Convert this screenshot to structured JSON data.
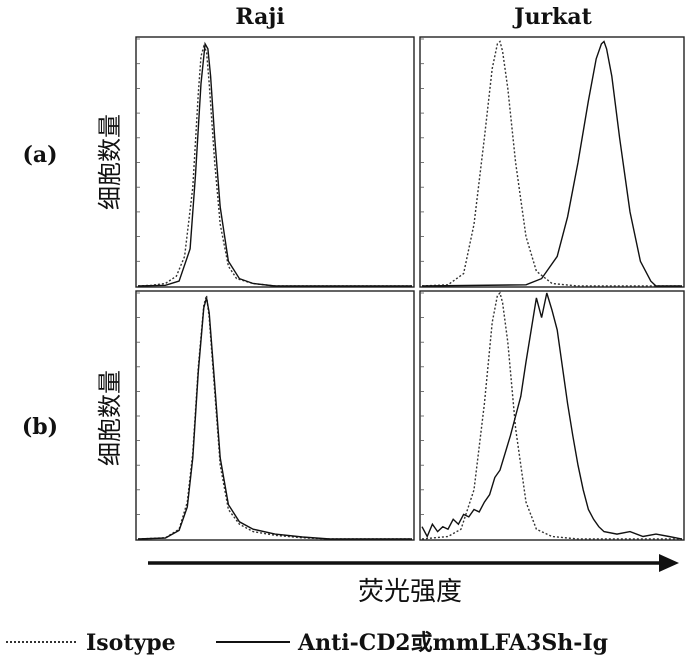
{
  "labels": {
    "col_raji": "Raji",
    "col_jurkat": "Jurkat",
    "row_a": "(a)",
    "row_b": "(b)",
    "ylabel": "细胞数量",
    "xlabel": "荧光强度",
    "legend_isotype": "Isotype",
    "legend_anti": "Anti-CD2或mmLFA3Sh-Ig"
  },
  "colors": {
    "line": "#111111",
    "frame": "#222222",
    "background": "#ffffff"
  },
  "chart_data": [
    {
      "type": "line",
      "panel": "(a) Raji",
      "xlim": [
        0,
        1
      ],
      "ylim": [
        0,
        1
      ],
      "series": [
        {
          "name": "Isotype",
          "style": "dotted",
          "x": [
            0,
            0.05,
            0.1,
            0.14,
            0.17,
            0.2,
            0.22,
            0.23,
            0.24,
            0.25,
            0.26,
            0.28,
            0.3,
            0.33,
            0.36,
            0.42,
            0.5,
            0.7,
            1.0
          ],
          "y": [
            0,
            0.003,
            0.01,
            0.04,
            0.12,
            0.4,
            0.78,
            0.93,
            0.97,
            0.95,
            0.82,
            0.5,
            0.25,
            0.08,
            0.03,
            0.01,
            0,
            0,
            0
          ]
        },
        {
          "name": "Anti-CD2或mmLFA3Sh-Ig",
          "style": "solid",
          "x": [
            0,
            0.1,
            0.15,
            0.19,
            0.21,
            0.23,
            0.245,
            0.255,
            0.265,
            0.28,
            0.3,
            0.33,
            0.37,
            0.42,
            0.5,
            0.7,
            1.0
          ],
          "y": [
            0,
            0.003,
            0.02,
            0.15,
            0.45,
            0.82,
            0.98,
            0.96,
            0.85,
            0.6,
            0.32,
            0.1,
            0.03,
            0.01,
            0,
            0,
            0
          ]
        }
      ]
    },
    {
      "type": "line",
      "panel": "(a) Jurkat",
      "xlim": [
        0,
        1
      ],
      "ylim": [
        0,
        1
      ],
      "series": [
        {
          "name": "Isotype",
          "style": "dotted",
          "x": [
            0,
            0.1,
            0.16,
            0.2,
            0.24,
            0.27,
            0.29,
            0.3,
            0.31,
            0.33,
            0.36,
            0.4,
            0.44,
            0.5,
            0.6,
            1.0
          ],
          "y": [
            0,
            0.005,
            0.05,
            0.25,
            0.6,
            0.88,
            0.98,
            0.99,
            0.95,
            0.8,
            0.5,
            0.2,
            0.06,
            0.01,
            0,
            0
          ]
        },
        {
          "name": "Anti-CD2或mmLFA3Sh-Ig",
          "style": "solid",
          "x": [
            0,
            0.4,
            0.46,
            0.52,
            0.56,
            0.6,
            0.64,
            0.67,
            0.69,
            0.7,
            0.71,
            0.73,
            0.76,
            0.8,
            0.84,
            0.88,
            0.9,
            1.0
          ],
          "y": [
            0,
            0.005,
            0.03,
            0.12,
            0.28,
            0.5,
            0.75,
            0.92,
            0.98,
            0.99,
            0.96,
            0.85,
            0.6,
            0.3,
            0.1,
            0.02,
            0,
            0
          ]
        }
      ]
    },
    {
      "type": "line",
      "panel": "(b) Raji",
      "xlim": [
        0,
        1
      ],
      "ylim": [
        0,
        1
      ],
      "series": [
        {
          "name": "Isotype",
          "style": "dotted",
          "x": [
            0,
            0.1,
            0.15,
            0.18,
            0.2,
            0.22,
            0.24,
            0.25,
            0.26,
            0.28,
            0.3,
            0.33,
            0.37,
            0.42,
            0.5,
            0.6,
            0.7,
            1.0
          ],
          "y": [
            0,
            0.005,
            0.04,
            0.15,
            0.35,
            0.7,
            0.95,
            0.99,
            0.9,
            0.6,
            0.3,
            0.12,
            0.06,
            0.03,
            0.015,
            0.005,
            0,
            0
          ]
        },
        {
          "name": "Anti-CD2或mmLFA3Sh-Ig",
          "style": "solid",
          "x": [
            0,
            0.1,
            0.15,
            0.18,
            0.2,
            0.22,
            0.24,
            0.25,
            0.26,
            0.28,
            0.3,
            0.33,
            0.37,
            0.42,
            0.5,
            0.6,
            0.7,
            1.0
          ],
          "y": [
            0,
            0.004,
            0.035,
            0.13,
            0.33,
            0.68,
            0.94,
            0.98,
            0.92,
            0.63,
            0.33,
            0.14,
            0.07,
            0.04,
            0.02,
            0.008,
            0,
            0
          ]
        }
      ]
    },
    {
      "type": "line",
      "panel": "(b) Jurkat",
      "xlim": [
        0,
        1
      ],
      "ylim": [
        0,
        1
      ],
      "series": [
        {
          "name": "Isotype",
          "style": "dotted",
          "x": [
            0,
            0.1,
            0.15,
            0.2,
            0.24,
            0.27,
            0.29,
            0.3,
            0.31,
            0.33,
            0.36,
            0.4,
            0.44,
            0.5,
            0.6,
            1.0
          ],
          "y": [
            0,
            0.01,
            0.04,
            0.2,
            0.55,
            0.88,
            0.99,
            1.0,
            0.96,
            0.8,
            0.45,
            0.15,
            0.04,
            0.01,
            0,
            0
          ]
        },
        {
          "name": "Anti-CD2或mmLFA3Sh-Ig",
          "style": "solid",
          "x": [
            0,
            0.02,
            0.04,
            0.06,
            0.08,
            0.1,
            0.12,
            0.14,
            0.16,
            0.18,
            0.2,
            0.22,
            0.24,
            0.26,
            0.28,
            0.3,
            0.32,
            0.34,
            0.36,
            0.38,
            0.4,
            0.42,
            0.44,
            0.46,
            0.48,
            0.5,
            0.52,
            0.54,
            0.56,
            0.58,
            0.6,
            0.62,
            0.64,
            0.66,
            0.68,
            0.7,
            0.75,
            0.8,
            0.85,
            0.9,
            0.95,
            1.0
          ],
          "y": [
            0.05,
            0.01,
            0.06,
            0.03,
            0.05,
            0.04,
            0.08,
            0.06,
            0.1,
            0.09,
            0.12,
            0.11,
            0.15,
            0.18,
            0.25,
            0.28,
            0.35,
            0.42,
            0.5,
            0.58,
            0.72,
            0.85,
            0.98,
            0.9,
            1.0,
            0.93,
            0.85,
            0.7,
            0.55,
            0.42,
            0.3,
            0.2,
            0.12,
            0.08,
            0.05,
            0.03,
            0.02,
            0.03,
            0.01,
            0.02,
            0.01,
            0.0
          ]
        }
      ]
    }
  ]
}
